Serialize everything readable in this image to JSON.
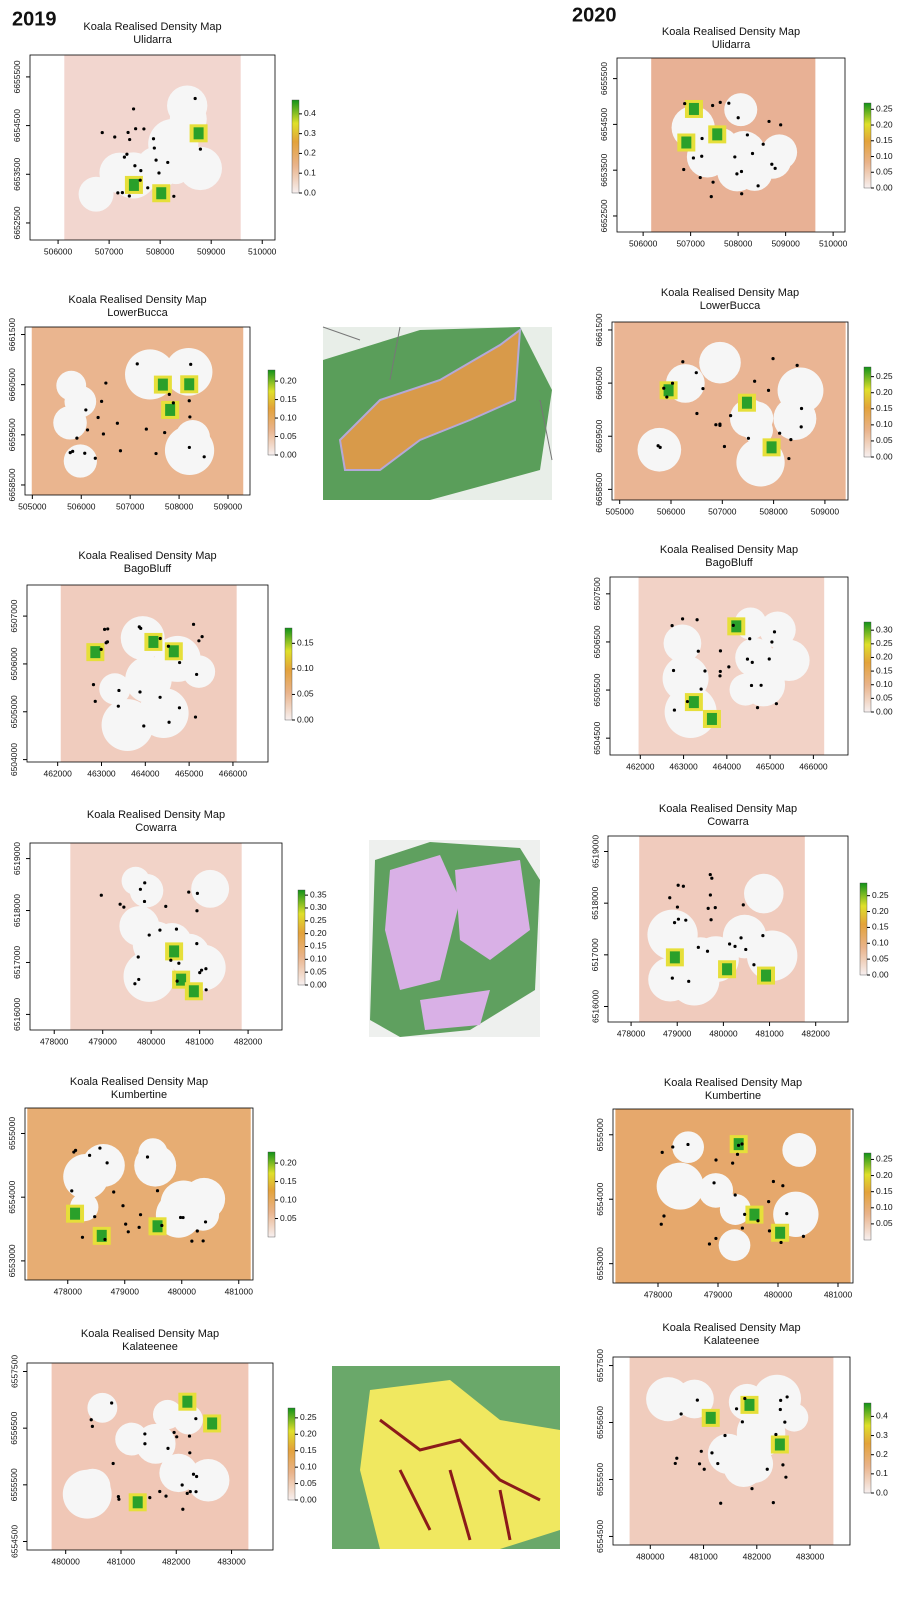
{
  "year_labels": [
    "2019",
    "2020"
  ],
  "chart_data": [
    {
      "type": "heatmap",
      "title": "Koala Realised Density Map",
      "subtitle": "Ulidarra",
      "background": "#f2d6cf",
      "xlim": [
        505450,
        510250
      ],
      "ylim": [
        6652150,
        6655950
      ],
      "xticks": [
        506000,
        507000,
        508000,
        509000,
        510000
      ],
      "yticks": [
        6652500,
        6653500,
        6654500,
        6655500
      ],
      "colorbar_lim": [
        0,
        0.47
      ],
      "colorbar_ticks": [
        {
          "value": 0,
          "label": "0.0"
        },
        0.1,
        0.2,
        0.3,
        0.4
      ]
    },
    {
      "type": "heatmap",
      "title": "Koala Realised Density Map",
      "subtitle": "LowerBucca",
      "background": "#eab58f",
      "xlim": [
        504850,
        509450
      ],
      "ylim": [
        6658300,
        6661650
      ],
      "xticks": [
        505000,
        506000,
        507000,
        508000,
        509000
      ],
      "yticks": [
        6658500,
        6659500,
        6660500,
        6661500
      ],
      "colorbar_lim": [
        0,
        0.23
      ],
      "colorbar_ticks": [
        {
          "value": 0,
          "label": "0.00"
        },
        0.05,
        {
          "value": 0.1,
          "label": "0.10"
        },
        0.15,
        {
          "value": 0.2,
          "label": "0.20"
        }
      ]
    },
    {
      "type": "heatmap",
      "title": "Koala Realised Density Map",
      "subtitle": "BagoBluff",
      "background": "#f0ccbe",
      "xlim": [
        461300,
        466800
      ],
      "ylim": [
        6503950,
        6507650
      ],
      "xticks": [
        462000,
        463000,
        464000,
        465000,
        466000
      ],
      "yticks": [
        6504000,
        6505000,
        6506000,
        6507000
      ],
      "colorbar_lim": [
        0,
        0.18
      ],
      "colorbar_ticks": [
        {
          "value": 0,
          "label": "0.00"
        },
        0.05,
        {
          "value": 0.1,
          "label": "0.10"
        },
        0.15
      ]
    },
    {
      "type": "heatmap",
      "title": "Koala Realised Density Map",
      "subtitle": "Cowarra",
      "background": "#f2d3c8",
      "xlim": [
        477500,
        482700
      ],
      "ylim": [
        6515700,
        6519300
      ],
      "xticks": [
        478000,
        479000,
        480000,
        481000,
        482000
      ],
      "yticks": [
        6516000,
        6517000,
        6518000,
        6519000
      ],
      "colorbar_lim": [
        0,
        0.37
      ],
      "colorbar_ticks": [
        {
          "value": 0,
          "label": "0.00"
        },
        0.05,
        {
          "value": 0.1,
          "label": "0.10"
        },
        0.15,
        {
          "value": 0.2,
          "label": "0.20"
        },
        0.25,
        {
          "value": 0.3,
          "label": "0.30"
        },
        0.35
      ]
    },
    {
      "type": "heatmap",
      "title": "Koala Realised Density Map",
      "subtitle": "Kumbertine",
      "background": "#e7ad73",
      "xlim": [
        477250,
        481250
      ],
      "ylim": [
        6552700,
        6555400
      ],
      "xticks": [
        478000,
        479000,
        480000,
        481000
      ],
      "yticks": [
        6553000,
        6554000,
        6555000
      ],
      "colorbar_lim": [
        0,
        0.23
      ],
      "colorbar_ticks": [
        0.05,
        {
          "value": 0.1,
          "label": "0.10"
        },
        0.15,
        {
          "value": 0.2,
          "label": "0.20"
        }
      ]
    },
    {
      "type": "heatmap",
      "title": "Koala Realised Density Map",
      "subtitle": "Kalateenee",
      "background": "#f0c7b6",
      "xlim": [
        479300,
        483750
      ],
      "ylim": [
        6554350,
        6557650
      ],
      "xticks": [
        480000,
        481000,
        482000,
        483000
      ],
      "yticks": [
        6554500,
        6555500,
        6556500,
        6557500
      ],
      "colorbar_lim": [
        0,
        0.28
      ],
      "colorbar_ticks": [
        {
          "value": 0,
          "label": "0.00"
        },
        0.05,
        {
          "value": 0.1,
          "label": "0.10"
        },
        0.15,
        {
          "value": 0.2,
          "label": "0.20"
        },
        0.25
      ]
    },
    {
      "type": "heatmap",
      "title": "Koala Realised Density Map",
      "subtitle": "Ulidarra",
      "background": "#e8b195",
      "xlim": [
        505450,
        510250
      ],
      "ylim": [
        6652150,
        6655950
      ],
      "xticks": [
        506000,
        507000,
        508000,
        509000,
        510000
      ],
      "yticks": [
        6652500,
        6653500,
        6654500,
        6655500
      ],
      "colorbar_lim": [
        0,
        0.27
      ],
      "colorbar_ticks": [
        {
          "value": 0,
          "label": "0.00"
        },
        0.05,
        {
          "value": 0.1,
          "label": "0.10"
        },
        0.15,
        {
          "value": 0.2,
          "label": "0.20"
        },
        0.25
      ]
    },
    {
      "type": "heatmap",
      "title": "Koala Realised Density Map",
      "subtitle": "LowerBucca",
      "background": "#eab594",
      "xlim": [
        504850,
        509450
      ],
      "ylim": [
        6658300,
        6661650
      ],
      "xticks": [
        505000,
        506000,
        507000,
        508000,
        509000
      ],
      "yticks": [
        6658500,
        6659500,
        6660500,
        6661500
      ],
      "colorbar_lim": [
        0,
        0.28
      ],
      "colorbar_ticks": [
        {
          "value": 0,
          "label": "0.00"
        },
        0.05,
        {
          "value": 0.1,
          "label": "0.10"
        },
        0.15,
        {
          "value": 0.2,
          "label": "0.20"
        },
        0.25
      ]
    },
    {
      "type": "heatmap",
      "title": "Koala Realised Density Map",
      "subtitle": "BagoBluff",
      "background": "#f2d2c6",
      "xlim": [
        461300,
        466800
      ],
      "ylim": [
        6504150,
        6507850
      ],
      "xticks": [
        462000,
        463000,
        464000,
        465000,
        466000
      ],
      "yticks": [
        6504500,
        6505500,
        6506500,
        6507500
      ],
      "colorbar_lim": [
        0,
        0.33
      ],
      "colorbar_ticks": [
        {
          "value": 0,
          "label": "0.00"
        },
        0.05,
        {
          "value": 0.1,
          "label": "0.10"
        },
        0.15,
        {
          "value": 0.2,
          "label": "0.20"
        },
        0.25,
        {
          "value": 0.3,
          "label": "0.30"
        }
      ]
    },
    {
      "type": "heatmap",
      "title": "Koala Realised Density Map",
      "subtitle": "Cowarra",
      "background": "#f0cbbd",
      "xlim": [
        477500,
        482700
      ],
      "ylim": [
        6515700,
        6519300
      ],
      "xticks": [
        478000,
        479000,
        480000,
        481000,
        482000
      ],
      "yticks": [
        6516000,
        6517000,
        6518000,
        6519000
      ],
      "colorbar_lim": [
        0,
        0.29
      ],
      "colorbar_ticks": [
        {
          "value": 0,
          "label": "0.00"
        },
        0.05,
        {
          "value": 0.1,
          "label": "0.10"
        },
        0.15,
        {
          "value": 0.2,
          "label": "0.20"
        },
        0.25
      ]
    },
    {
      "type": "heatmap",
      "title": "Koala Realised Density Map",
      "subtitle": "Kumbertine",
      "background": "#e6a86c",
      "xlim": [
        477250,
        481250
      ],
      "ylim": [
        6552700,
        6555400
      ],
      "xticks": [
        478000,
        479000,
        480000,
        481000
      ],
      "yticks": [
        6553000,
        6554000,
        6555000
      ],
      "colorbar_lim": [
        0,
        0.27
      ],
      "colorbar_ticks": [
        0.05,
        {
          "value": 0.1,
          "label": "0.10"
        },
        0.15,
        {
          "value": 0.2,
          "label": "0.20"
        },
        0.25
      ]
    },
    {
      "type": "heatmap",
      "title": "Koala Realised Density Map",
      "subtitle": "Kalateenee",
      "background": "#f0ccbd",
      "xlim": [
        479300,
        483750
      ],
      "ylim": [
        6554350,
        6557650
      ],
      "xticks": [
        480000,
        481000,
        482000,
        483000
      ],
      "yticks": [
        6554500,
        6555500,
        6556500,
        6557500
      ],
      "colorbar_lim": [
        0,
        0.47
      ],
      "colorbar_ticks": [
        {
          "value": 0,
          "label": "0.0"
        },
        0.1,
        0.2,
        0.3,
        0.4
      ]
    }
  ]
}
